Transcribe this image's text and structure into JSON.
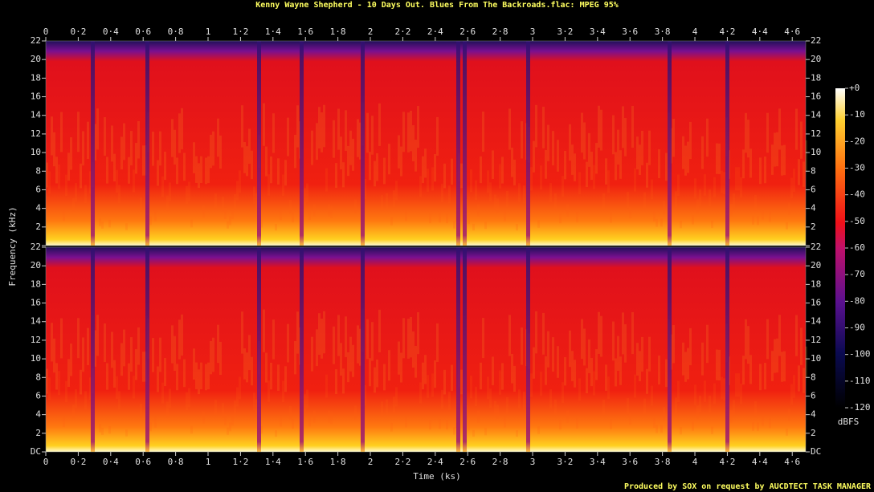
{
  "chart_data": {
    "type": "spectrogram",
    "title": "Kenny Wayne Shepherd - 10 Days Out. Blues From The Backroads.flac: MPEG 95%",
    "xlabel": "Time (ks)",
    "ylabel": "Frequency (kHz)",
    "xlim": [
      0,
      4.683
    ],
    "xticks": [
      0,
      {
        "value": 0.2,
        "label": "0·2"
      },
      {
        "value": 0.4,
        "label": "0·4"
      },
      {
        "value": 0.6,
        "label": "0·6"
      },
      {
        "value": 0.8,
        "label": "0·8"
      },
      1,
      {
        "value": 1.2,
        "label": "1·2"
      },
      {
        "value": 1.4,
        "label": "1·4"
      },
      {
        "value": 1.6,
        "label": "1·6"
      },
      {
        "value": 1.8,
        "label": "1·8"
      },
      2,
      {
        "value": 2.2,
        "label": "2·2"
      },
      {
        "value": 2.4,
        "label": "2·4"
      },
      {
        "value": 2.6,
        "label": "2·6"
      },
      {
        "value": 2.8,
        "label": "2·8"
      },
      3,
      {
        "value": 3.2,
        "label": "3·2"
      },
      {
        "value": 3.4,
        "label": "3·4"
      },
      {
        "value": 3.6,
        "label": "3·6"
      },
      {
        "value": 3.8,
        "label": "3·8"
      },
      4,
      {
        "value": 4.2,
        "label": "4·2"
      },
      {
        "value": 4.4,
        "label": "4·4"
      },
      {
        "value": 4.6,
        "label": "4·6"
      }
    ],
    "ylim": [
      0,
      22
    ],
    "yticks": [
      {
        "value": 0,
        "label": "DC"
      },
      2,
      4,
      6,
      8,
      10,
      12,
      14,
      16,
      18,
      20,
      22
    ],
    "colorbar": {
      "label": "dBFS",
      "lim": [
        -120,
        0
      ],
      "ticks": [
        {
          "value": 0,
          "label": "+0"
        },
        -10,
        -20,
        -30,
        -40,
        -50,
        -60,
        -70,
        -80,
        -90,
        -100,
        -110,
        -120
      ]
    },
    "footer": "Produced by SOX on request by AUCDTECT TASK MANAGER"
  }
}
